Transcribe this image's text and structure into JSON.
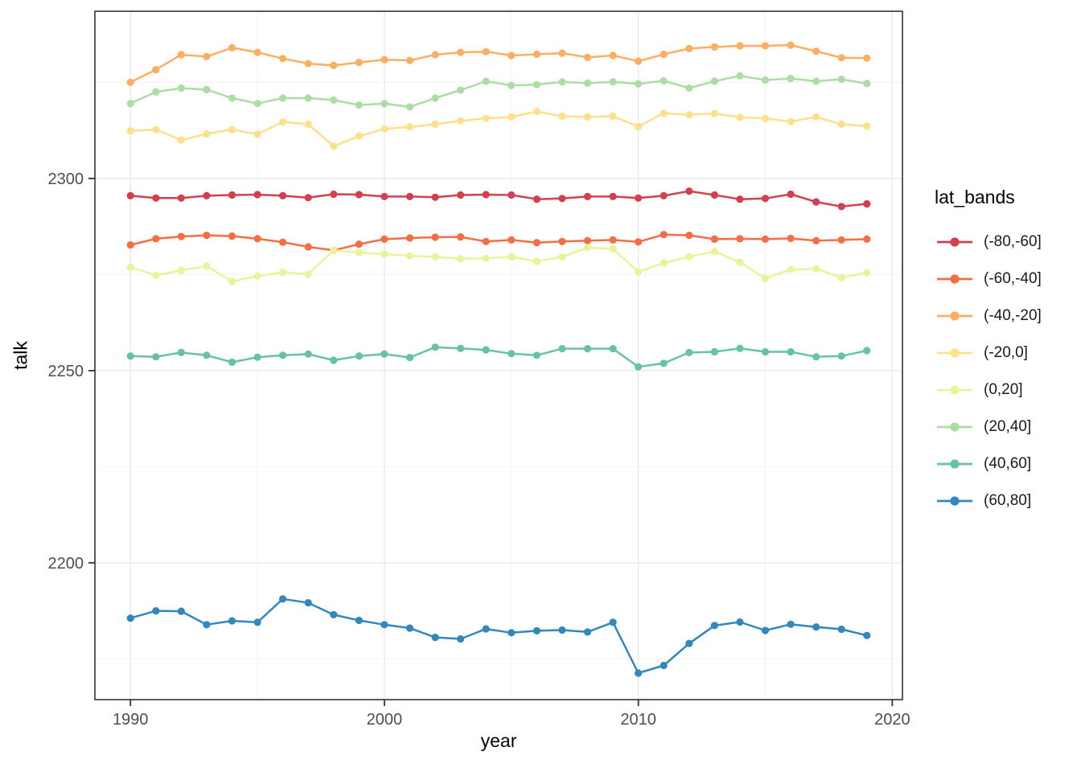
{
  "chart_data": {
    "type": "line",
    "title": "",
    "xlabel": "year",
    "ylabel": "talk",
    "legend_title": "lat_bands",
    "legend_position": "right",
    "grid": "major and minor gridlines on white panel",
    "x": [
      1990,
      1991,
      1992,
      1993,
      1994,
      1995,
      1996,
      1997,
      1998,
      1999,
      2000,
      2001,
      2002,
      2003,
      2004,
      2005,
      2006,
      2007,
      2008,
      2009,
      2010,
      2011,
      2012,
      2013,
      2014,
      2015,
      2016,
      2017,
      2018,
      2019
    ],
    "x_ticks": [
      1990,
      2000,
      2010,
      2020
    ],
    "x_minor_ticks": [
      1995,
      2005,
      2015
    ],
    "xlim": [
      1988.6,
      2020.4
    ],
    "y_ticks": [
      2200,
      2250,
      2300
    ],
    "y_minor_ticks": [
      2175,
      2225,
      2275,
      2325
    ],
    "ylim": [
      2164.4,
      2343.5
    ],
    "series": [
      {
        "name": "(-80,-60]",
        "color": "#D53E4F",
        "values": [
          2295.5,
          2294.9,
          2294.9,
          2295.5,
          2295.7,
          2295.8,
          2295.5,
          2295.0,
          2295.9,
          2295.8,
          2295.3,
          2295.3,
          2295.1,
          2295.7,
          2295.8,
          2295.7,
          2294.6,
          2294.8,
          2295.3,
          2295.3,
          2294.9,
          2295.5,
          2296.7,
          2295.7,
          2294.6,
          2294.8,
          2295.9,
          2293.9,
          2292.7,
          2293.4
        ]
      },
      {
        "name": "(-60,-40]",
        "color": "#F46D43",
        "values": [
          2282.7,
          2284.3,
          2284.9,
          2285.2,
          2285.0,
          2284.3,
          2283.4,
          2282.2,
          2281.3,
          2282.9,
          2284.2,
          2284.5,
          2284.7,
          2284.8,
          2283.6,
          2284.0,
          2283.3,
          2283.6,
          2283.8,
          2284.0,
          2283.5,
          2285.4,
          2285.2,
          2284.2,
          2284.3,
          2284.2,
          2284.4,
          2283.8,
          2284.0,
          2284.2
        ]
      },
      {
        "name": "(-40,-20]",
        "color": "#FDAE61",
        "values": [
          2325.0,
          2328.3,
          2332.2,
          2331.7,
          2334.0,
          2332.8,
          2331.2,
          2329.9,
          2329.4,
          2330.2,
          2330.9,
          2330.7,
          2332.2,
          2332.8,
          2333.0,
          2332.0,
          2332.3,
          2332.6,
          2331.5,
          2332.0,
          2330.5,
          2332.3,
          2333.8,
          2334.2,
          2334.5,
          2334.5,
          2334.7,
          2333.1,
          2331.4,
          2331.3
        ]
      },
      {
        "name": "(-20,0]",
        "color": "#FEE08B",
        "values": [
          2312.4,
          2312.7,
          2310.0,
          2311.6,
          2312.7,
          2311.5,
          2314.7,
          2314.1,
          2308.4,
          2311.0,
          2312.9,
          2313.4,
          2314.1,
          2315.0,
          2315.6,
          2316.0,
          2317.4,
          2316.2,
          2316.0,
          2316.2,
          2313.5,
          2317.0,
          2316.6,
          2316.9,
          2315.9,
          2315.6,
          2314.8,
          2316.0,
          2314.1,
          2313.6
        ]
      },
      {
        "name": "(0,20]",
        "color": "#E6F598",
        "values": [
          2276.9,
          2274.8,
          2276.1,
          2277.2,
          2273.2,
          2274.6,
          2275.6,
          2275.1,
          2281.3,
          2280.7,
          2280.3,
          2279.9,
          2279.6,
          2279.1,
          2279.2,
          2279.6,
          2278.4,
          2279.6,
          2282.0,
          2281.7,
          2275.7,
          2278.0,
          2279.6,
          2281.0,
          2278.2,
          2274.0,
          2276.3,
          2276.5,
          2274.2,
          2275.5
        ]
      },
      {
        "name": "(20,40]",
        "color": "#ABDDA4",
        "values": [
          2319.5,
          2322.5,
          2323.5,
          2323.1,
          2320.9,
          2319.5,
          2320.9,
          2320.9,
          2320.4,
          2319.1,
          2319.5,
          2318.6,
          2320.9,
          2323.0,
          2325.3,
          2324.2,
          2324.4,
          2325.1,
          2324.8,
          2325.1,
          2324.6,
          2325.4,
          2323.5,
          2325.3,
          2326.7,
          2325.6,
          2326.0,
          2325.3,
          2325.8,
          2324.7
        ]
      },
      {
        "name": "(40,60]",
        "color": "#66C2A5",
        "values": [
          2253.8,
          2253.6,
          2254.7,
          2254.0,
          2252.2,
          2253.5,
          2254.0,
          2254.3,
          2252.7,
          2253.8,
          2254.3,
          2253.4,
          2256.1,
          2255.8,
          2255.4,
          2254.4,
          2254.0,
          2255.7,
          2255.7,
          2255.7,
          2251.0,
          2251.9,
          2254.7,
          2254.9,
          2255.8,
          2254.9,
          2254.9,
          2253.6,
          2253.8,
          2255.2
        ]
      },
      {
        "name": "(60,80]",
        "color": "#3288BD",
        "values": [
          2185.6,
          2187.5,
          2187.4,
          2183.9,
          2184.9,
          2184.5,
          2190.6,
          2189.6,
          2186.5,
          2185.0,
          2183.9,
          2183.0,
          2180.6,
          2180.2,
          2182.8,
          2181.8,
          2182.3,
          2182.5,
          2182.0,
          2184.5,
          2171.3,
          2173.3,
          2179.0,
          2183.7,
          2184.6,
          2182.4,
          2184.0,
          2183.3,
          2182.7,
          2181.1
        ]
      }
    ]
  },
  "style": {
    "background": "#FFFFFF",
    "panel_background": "#FFFFFF",
    "panel_border": "#333333",
    "grid_major": "#EBEBEB",
    "grid_minor": "#F4F4F4",
    "tick_mark_color": "#333333",
    "tick_label_color": "#4D4D4D",
    "axis_title_color": "#000000",
    "legend_text_color": "#1A1A1A"
  }
}
